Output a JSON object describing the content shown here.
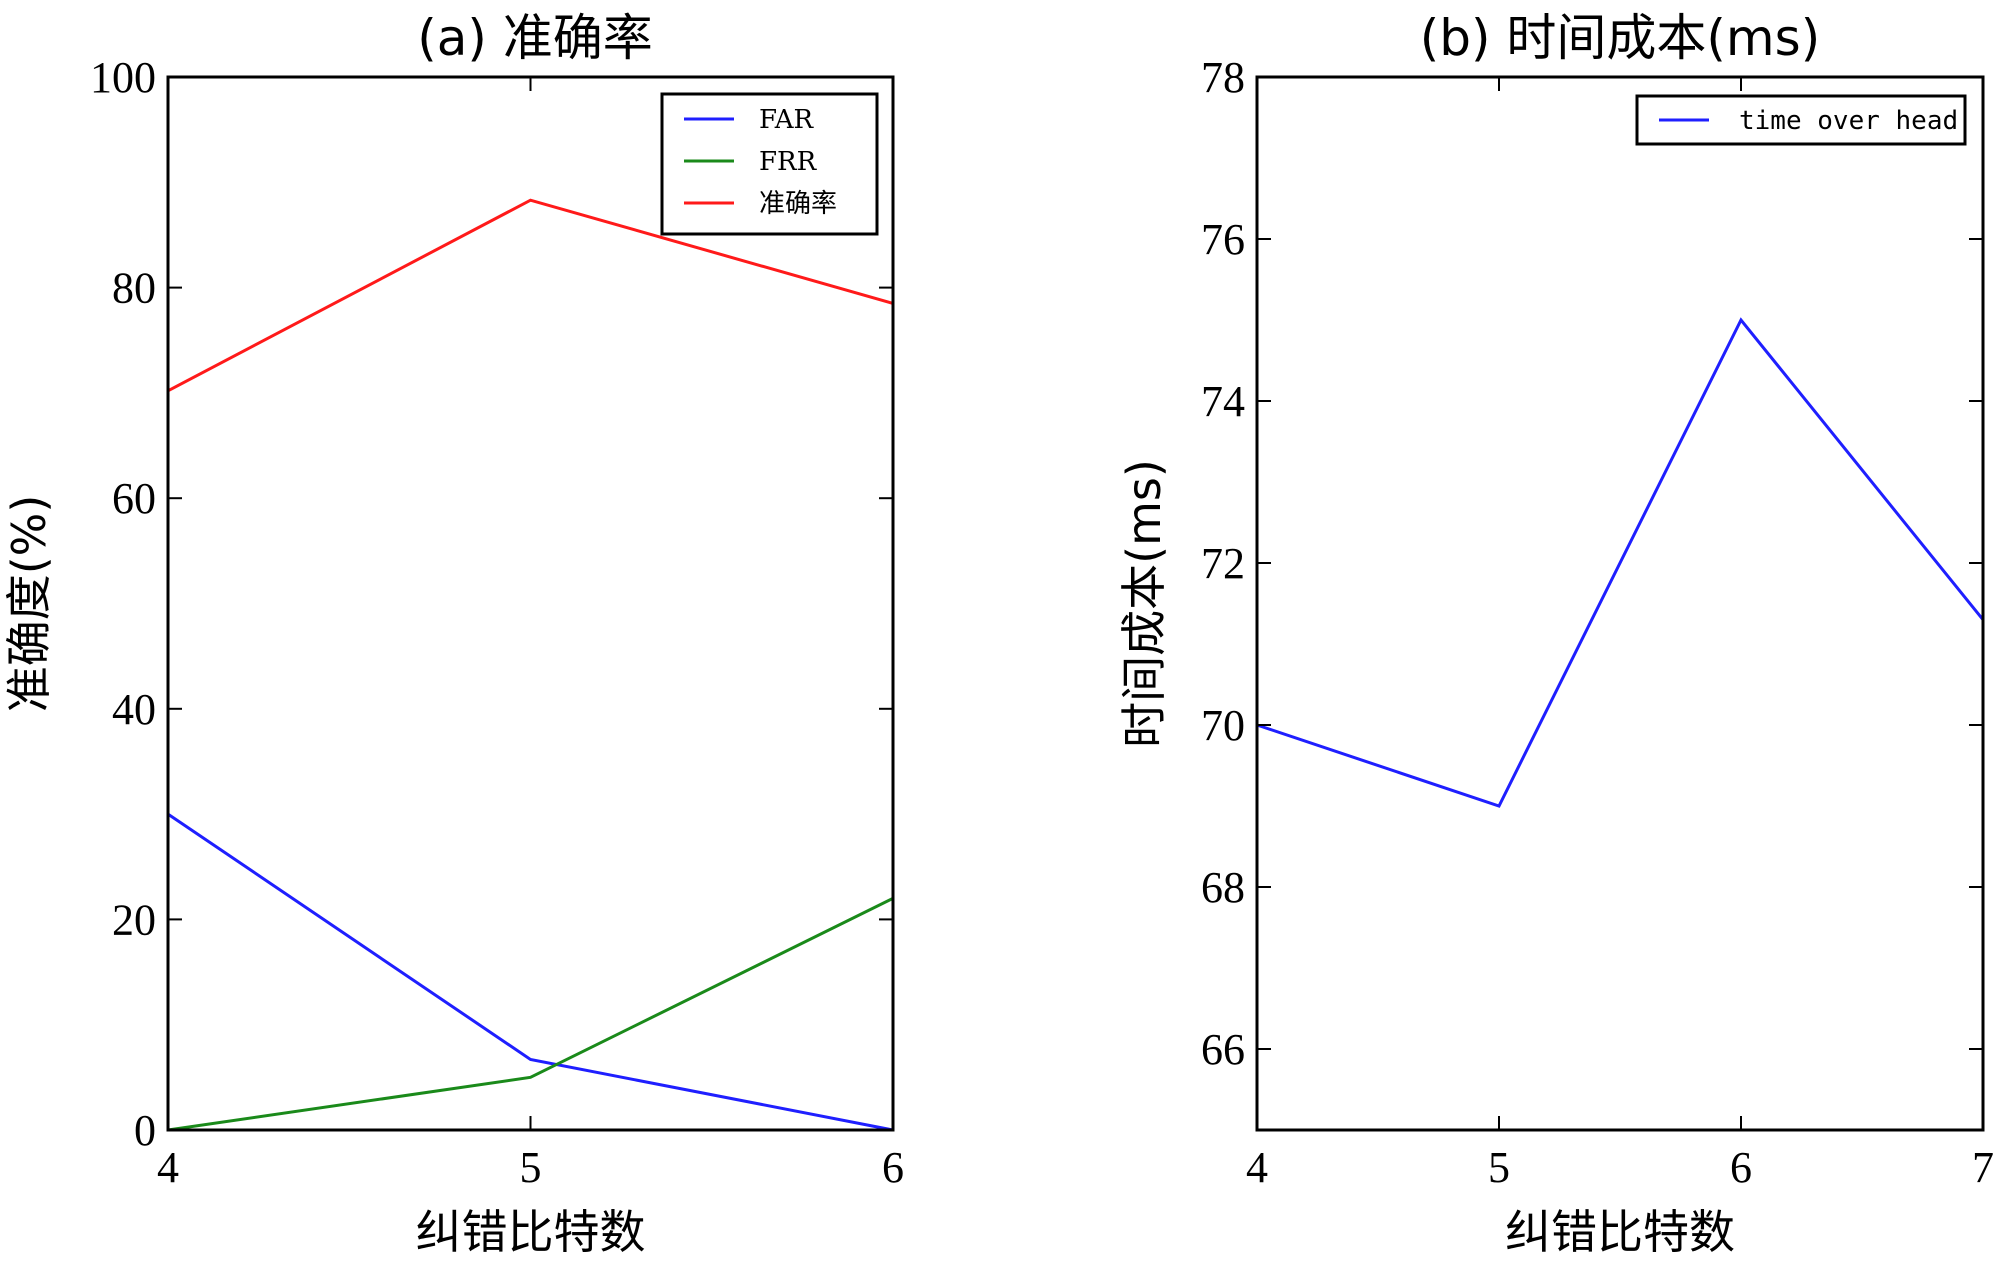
{
  "chart_data": [
    {
      "type": "line",
      "title": "(a)  准确率",
      "xlabel": "纠错比特数",
      "ylabel": "准确度(%)",
      "x": [
        4,
        5,
        6
      ],
      "xticks": [
        "4",
        "5",
        "6"
      ],
      "xlim": [
        4,
        6
      ],
      "ylim": [
        0,
        100
      ],
      "yticks": [
        "0",
        "20",
        "40",
        "60",
        "80",
        "100"
      ],
      "legend_position": "top-right",
      "series": [
        {
          "name": "FAR",
          "color": "#1f1fff",
          "values": [
            30,
            6.7,
            0
          ]
        },
        {
          "name": "FRR",
          "color": "#1a8a1a",
          "values": [
            0,
            5,
            22
          ]
        },
        {
          "name": "准确率",
          "color": "#ff1a1a",
          "values": [
            70.2,
            88.3,
            78.5
          ]
        }
      ]
    },
    {
      "type": "line",
      "title": "(b)  时间成本(ms)",
      "xlabel": "纠错比特数",
      "ylabel": "时间成本(ms)",
      "x": [
        4,
        5,
        6,
        7
      ],
      "xticks": [
        "4",
        "5",
        "6",
        "7"
      ],
      "xlim": [
        4,
        7
      ],
      "ylim": [
        65,
        78
      ],
      "yticks": [
        "66",
        "68",
        "70",
        "72",
        "74",
        "76",
        "78"
      ],
      "legend_position": "top-right",
      "series": [
        {
          "name": "time  over head",
          "color": "#1f1fff",
          "values": [
            70,
            69,
            75,
            71.3
          ]
        }
      ]
    }
  ]
}
